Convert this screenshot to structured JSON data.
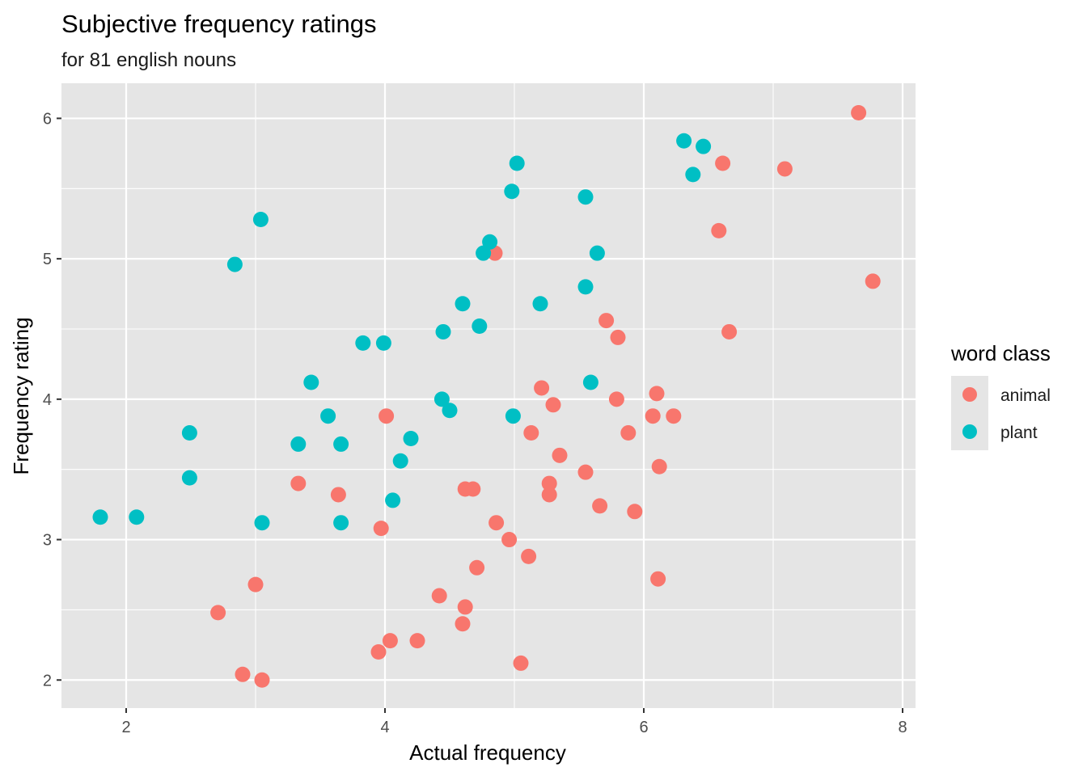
{
  "chart_data": {
    "type": "scatter",
    "title": "Subjective frequency ratings",
    "subtitle": "for 81 english nouns",
    "xlabel": "Actual frequency",
    "ylabel": "Frequency rating",
    "xlim": [
      1.5,
      8.1
    ],
    "ylim": [
      1.8,
      6.25
    ],
    "x_ticks": [
      2,
      4,
      6,
      8
    ],
    "y_ticks": [
      2,
      3,
      4,
      5,
      6
    ],
    "grid": true,
    "legend": {
      "title": "word class",
      "position": "right"
    },
    "colors": {
      "panel": "#e5e5e5",
      "grid": "#ffffff",
      "animal": "#f8766d",
      "plant": "#00bfc4"
    },
    "series": [
      {
        "name": "animal",
        "color": "#f8766d",
        "points": [
          [
            7.66,
            6.04
          ],
          [
            6.61,
            5.68
          ],
          [
            7.09,
            5.64
          ],
          [
            6.58,
            5.2
          ],
          [
            4.85,
            5.04
          ],
          [
            7.77,
            4.84
          ],
          [
            6.66,
            4.48
          ],
          [
            5.71,
            4.56
          ],
          [
            5.8,
            4.44
          ],
          [
            5.21,
            4.08
          ],
          [
            6.1,
            4.04
          ],
          [
            5.79,
            4.0
          ],
          [
            5.3,
            3.96
          ],
          [
            4.01,
            3.88
          ],
          [
            6.07,
            3.88
          ],
          [
            6.23,
            3.88
          ],
          [
            5.13,
            3.76
          ],
          [
            5.88,
            3.76
          ],
          [
            5.35,
            3.6
          ],
          [
            6.12,
            3.52
          ],
          [
            5.55,
            3.48
          ],
          [
            3.33,
            3.4
          ],
          [
            5.27,
            3.4
          ],
          [
            4.62,
            3.36
          ],
          [
            4.68,
            3.36
          ],
          [
            3.64,
            3.32
          ],
          [
            5.27,
            3.32
          ],
          [
            5.66,
            3.24
          ],
          [
            5.93,
            3.2
          ],
          [
            4.86,
            3.12
          ],
          [
            3.97,
            3.08
          ],
          [
            4.96,
            3.0
          ],
          [
            5.11,
            2.88
          ],
          [
            4.71,
            2.8
          ],
          [
            6.11,
            2.72
          ],
          [
            3.0,
            2.68
          ],
          [
            4.42,
            2.6
          ],
          [
            4.62,
            2.52
          ],
          [
            2.71,
            2.48
          ],
          [
            4.6,
            2.4
          ],
          [
            4.04,
            2.28
          ],
          [
            4.25,
            2.28
          ],
          [
            3.95,
            2.2
          ],
          [
            5.05,
            2.12
          ],
          [
            2.9,
            2.04
          ],
          [
            3.05,
            2.0
          ]
        ]
      },
      {
        "name": "plant",
        "color": "#00bfc4",
        "points": [
          [
            6.31,
            5.84
          ],
          [
            6.46,
            5.8
          ],
          [
            5.02,
            5.68
          ],
          [
            6.38,
            5.6
          ],
          [
            4.98,
            5.48
          ],
          [
            5.55,
            5.44
          ],
          [
            3.04,
            5.28
          ],
          [
            4.81,
            5.12
          ],
          [
            4.76,
            5.04
          ],
          [
            5.64,
            5.04
          ],
          [
            2.84,
            4.96
          ],
          [
            5.55,
            4.8
          ],
          [
            4.6,
            4.68
          ],
          [
            5.2,
            4.68
          ],
          [
            4.73,
            4.52
          ],
          [
            4.45,
            4.48
          ],
          [
            3.83,
            4.4
          ],
          [
            3.99,
            4.4
          ],
          [
            3.43,
            4.12
          ],
          [
            5.59,
            4.12
          ],
          [
            4.44,
            4.0
          ],
          [
            4.5,
            3.92
          ],
          [
            3.56,
            3.88
          ],
          [
            4.99,
            3.88
          ],
          [
            2.49,
            3.76
          ],
          [
            4.2,
            3.72
          ],
          [
            3.33,
            3.68
          ],
          [
            3.66,
            3.68
          ],
          [
            4.12,
            3.56
          ],
          [
            2.49,
            3.44
          ],
          [
            4.06,
            3.28
          ],
          [
            1.8,
            3.16
          ],
          [
            2.08,
            3.16
          ],
          [
            3.05,
            3.12
          ],
          [
            3.66,
            3.12
          ]
        ]
      }
    ]
  }
}
